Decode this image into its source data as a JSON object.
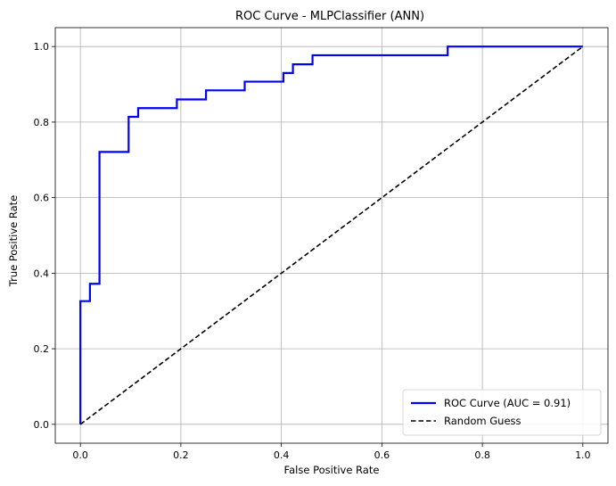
{
  "chart_data": {
    "type": "line",
    "title": "ROC Curve - MLPClassifier (ANN)",
    "xlabel": "False Positive Rate",
    "ylabel": "True Positive Rate",
    "xlim": [
      -0.05,
      1.05
    ],
    "ylim": [
      -0.05,
      1.05
    ],
    "xticks": [
      0.0,
      0.2,
      0.4,
      0.6,
      0.8,
      1.0
    ],
    "xtick_labels": [
      "0.0",
      "0.2",
      "0.4",
      "0.6",
      "0.8",
      "1.0"
    ],
    "yticks": [
      0.0,
      0.2,
      0.4,
      0.6,
      0.8,
      1.0
    ],
    "ytick_labels": [
      "0.0",
      "0.2",
      "0.4",
      "0.6",
      "0.8",
      "1.0"
    ],
    "grid": true,
    "legend_position": "bottom-right",
    "series": [
      {
        "name": "ROC Curve (AUC = 0.91)",
        "color": "#0000ff",
        "style": "solid",
        "x": [
          0.0,
          0.0,
          0.019,
          0.019,
          0.038,
          0.038,
          0.096,
          0.096,
          0.115,
          0.115,
          0.192,
          0.192,
          0.25,
          0.25,
          0.327,
          0.327,
          0.404,
          0.404,
          0.423,
          0.423,
          0.462,
          0.462,
          0.731,
          0.731,
          1.0
        ],
        "y": [
          0.0,
          0.326,
          0.326,
          0.372,
          0.372,
          0.721,
          0.721,
          0.814,
          0.814,
          0.837,
          0.837,
          0.86,
          0.86,
          0.884,
          0.884,
          0.907,
          0.907,
          0.93,
          0.93,
          0.953,
          0.953,
          0.977,
          0.977,
          1.0,
          1.0
        ]
      },
      {
        "name": "Random Guess",
        "color": "#000000",
        "style": "dashed",
        "x": [
          0.0,
          1.0
        ],
        "y": [
          0.0,
          1.0
        ]
      }
    ]
  }
}
